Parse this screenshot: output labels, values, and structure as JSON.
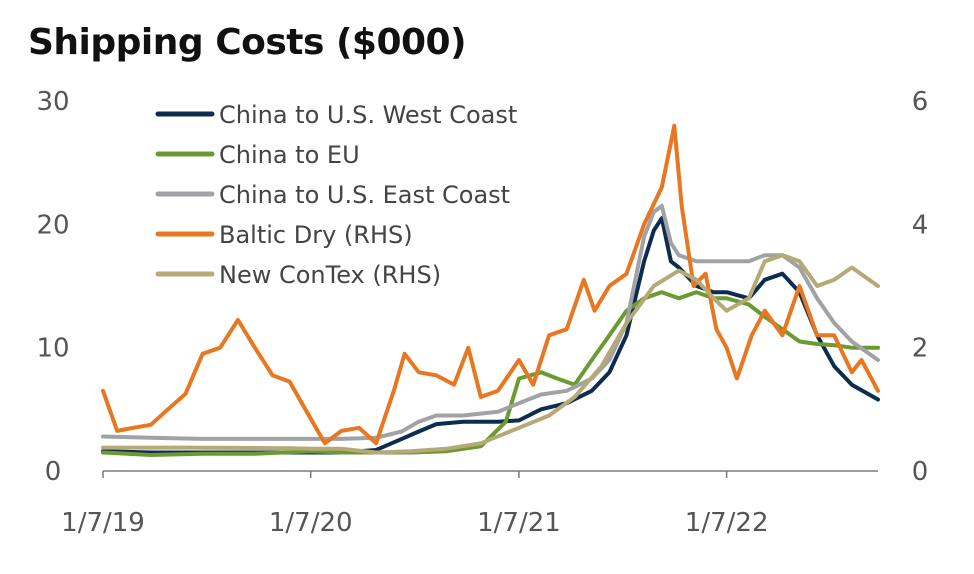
{
  "chart_data": {
    "type": "line",
    "title": "Shipping Costs ($000)",
    "xlabel": "",
    "ylabel": "",
    "x_ticks": [
      "1/7/19",
      "1/7/20",
      "1/7/21",
      "1/7/22"
    ],
    "x_range": [
      "2019-01-07",
      "2022-09-30"
    ],
    "ylim_left": [
      0,
      30
    ],
    "ylim_right": [
      0,
      6
    ],
    "y_ticks_left": [
      0,
      10,
      20,
      30
    ],
    "y_ticks_right": [
      0,
      2,
      4,
      6
    ],
    "grid": false,
    "legend_position": "top-left",
    "series": [
      {
        "name": "China to U.S. West Coast",
        "axis": "left",
        "color": "#0d2d4f",
        "points": [
          [
            "2019-01-07",
            1.6
          ],
          [
            "2019-04-01",
            1.5
          ],
          [
            "2019-07-01",
            1.5
          ],
          [
            "2019-10-01",
            1.5
          ],
          [
            "2020-01-07",
            1.5
          ],
          [
            "2020-03-01",
            1.5
          ],
          [
            "2020-05-01",
            1.7
          ],
          [
            "2020-06-15",
            2.6
          ],
          [
            "2020-07-15",
            3.2
          ],
          [
            "2020-08-15",
            3.8
          ],
          [
            "2020-10-01",
            4.0
          ],
          [
            "2020-12-01",
            4.0
          ],
          [
            "2021-01-07",
            4.1
          ],
          [
            "2021-02-15",
            5.0
          ],
          [
            "2021-04-01",
            5.5
          ],
          [
            "2021-05-15",
            6.5
          ],
          [
            "2021-06-15",
            8.0
          ],
          [
            "2021-07-15",
            11.0
          ],
          [
            "2021-08-15",
            17.0
          ],
          [
            "2021-09-01",
            19.5
          ],
          [
            "2021-09-15",
            20.5
          ],
          [
            "2021-10-01",
            17.0
          ],
          [
            "2021-10-15",
            16.5
          ],
          [
            "2021-11-15",
            15.0
          ],
          [
            "2021-12-15",
            14.5
          ],
          [
            "2022-01-07",
            14.5
          ],
          [
            "2022-02-15",
            14.0
          ],
          [
            "2022-03-15",
            15.5
          ],
          [
            "2022-04-15",
            16.0
          ],
          [
            "2022-05-15",
            14.5
          ],
          [
            "2022-06-15",
            11.0
          ],
          [
            "2022-07-15",
            8.5
          ],
          [
            "2022-08-15",
            7.0
          ],
          [
            "2022-09-30",
            5.8
          ]
        ]
      },
      {
        "name": "China to EU",
        "axis": "left",
        "color": "#6b9a33",
        "points": [
          [
            "2019-01-07",
            1.5
          ],
          [
            "2019-04-01",
            1.3
          ],
          [
            "2019-07-01",
            1.4
          ],
          [
            "2019-10-01",
            1.4
          ],
          [
            "2020-01-07",
            1.6
          ],
          [
            "2020-03-01",
            1.5
          ],
          [
            "2020-05-01",
            1.5
          ],
          [
            "2020-07-01",
            1.5
          ],
          [
            "2020-09-01",
            1.6
          ],
          [
            "2020-11-01",
            2.0
          ],
          [
            "2020-12-15",
            4.0
          ],
          [
            "2021-01-07",
            7.5
          ],
          [
            "2021-02-15",
            8.0
          ],
          [
            "2021-03-15",
            7.5
          ],
          [
            "2021-04-15",
            7.0
          ],
          [
            "2021-05-15",
            9.0
          ],
          [
            "2021-06-15",
            11.0
          ],
          [
            "2021-07-15",
            13.0
          ],
          [
            "2021-08-15",
            14.0
          ],
          [
            "2021-09-15",
            14.5
          ],
          [
            "2021-10-15",
            14.0
          ],
          [
            "2021-11-15",
            14.5
          ],
          [
            "2021-12-15",
            14.0
          ],
          [
            "2022-01-07",
            14.0
          ],
          [
            "2022-02-15",
            13.5
          ],
          [
            "2022-03-15",
            12.5
          ],
          [
            "2022-04-15",
            11.5
          ],
          [
            "2022-05-15",
            10.5
          ],
          [
            "2022-06-15",
            10.3
          ],
          [
            "2022-07-15",
            10.2
          ],
          [
            "2022-08-15",
            10.0
          ],
          [
            "2022-09-30",
            10.0
          ]
        ]
      },
      {
        "name": "China to U.S. East Coast",
        "axis": "left",
        "color": "#a0a2a6",
        "points": [
          [
            "2019-01-07",
            2.8
          ],
          [
            "2019-04-01",
            2.7
          ],
          [
            "2019-07-01",
            2.6
          ],
          [
            "2019-10-01",
            2.6
          ],
          [
            "2020-01-07",
            2.6
          ],
          [
            "2020-03-01",
            2.6
          ],
          [
            "2020-05-01",
            2.7
          ],
          [
            "2020-06-15",
            3.2
          ],
          [
            "2020-07-15",
            4.0
          ],
          [
            "2020-08-15",
            4.5
          ],
          [
            "2020-10-01",
            4.5
          ],
          [
            "2020-12-01",
            4.8
          ],
          [
            "2021-01-07",
            5.5
          ],
          [
            "2021-02-15",
            6.2
          ],
          [
            "2021-04-01",
            6.5
          ],
          [
            "2021-05-15",
            7.5
          ],
          [
            "2021-06-15",
            9.0
          ],
          [
            "2021-07-15",
            12.0
          ],
          [
            "2021-08-15",
            19.0
          ],
          [
            "2021-09-01",
            21.0
          ],
          [
            "2021-09-15",
            21.5
          ],
          [
            "2021-10-01",
            18.5
          ],
          [
            "2021-10-15",
            17.5
          ],
          [
            "2021-11-15",
            17.0
          ],
          [
            "2021-12-15",
            17.0
          ],
          [
            "2022-01-07",
            17.0
          ],
          [
            "2022-02-15",
            17.0
          ],
          [
            "2022-03-15",
            17.5
          ],
          [
            "2022-04-15",
            17.5
          ],
          [
            "2022-05-15",
            16.5
          ],
          [
            "2022-06-15",
            14.0
          ],
          [
            "2022-07-15",
            12.0
          ],
          [
            "2022-08-15",
            10.5
          ],
          [
            "2022-09-30",
            9.0
          ]
        ]
      },
      {
        "name": "Baltic Dry (RHS)",
        "axis": "right",
        "color": "#e87722",
        "points": [
          [
            "2019-01-07",
            1.3
          ],
          [
            "2019-02-01",
            0.65
          ],
          [
            "2019-03-01",
            0.7
          ],
          [
            "2019-04-01",
            0.75
          ],
          [
            "2019-05-01",
            1.0
          ],
          [
            "2019-06-01",
            1.25
          ],
          [
            "2019-07-01",
            1.9
          ],
          [
            "2019-08-01",
            2.0
          ],
          [
            "2019-09-01",
            2.45
          ],
          [
            "2019-10-01",
            2.0
          ],
          [
            "2019-11-01",
            1.55
          ],
          [
            "2019-12-01",
            1.45
          ],
          [
            "2020-01-07",
            0.85
          ],
          [
            "2020-02-01",
            0.45
          ],
          [
            "2020-03-01",
            0.65
          ],
          [
            "2020-04-01",
            0.7
          ],
          [
            "2020-05-01",
            0.45
          ],
          [
            "2020-06-01",
            1.3
          ],
          [
            "2020-06-20",
            1.9
          ],
          [
            "2020-07-15",
            1.6
          ],
          [
            "2020-08-15",
            1.55
          ],
          [
            "2020-09-15",
            1.4
          ],
          [
            "2020-10-10",
            2.0
          ],
          [
            "2020-11-01",
            1.2
          ],
          [
            "2020-12-01",
            1.3
          ],
          [
            "2021-01-07",
            1.8
          ],
          [
            "2021-02-01",
            1.4
          ],
          [
            "2021-03-01",
            2.2
          ],
          [
            "2021-04-01",
            2.3
          ],
          [
            "2021-05-01",
            3.1
          ],
          [
            "2021-05-20",
            2.6
          ],
          [
            "2021-06-15",
            3.0
          ],
          [
            "2021-07-15",
            3.2
          ],
          [
            "2021-08-15",
            4.0
          ],
          [
            "2021-09-15",
            4.6
          ],
          [
            "2021-10-07",
            5.6
          ],
          [
            "2021-10-20",
            4.3
          ],
          [
            "2021-11-10",
            3.0
          ],
          [
            "2021-12-01",
            3.2
          ],
          [
            "2021-12-20",
            2.3
          ],
          [
            "2022-01-07",
            2.0
          ],
          [
            "2022-01-25",
            1.5
          ],
          [
            "2022-02-20",
            2.2
          ],
          [
            "2022-03-15",
            2.6
          ],
          [
            "2022-04-15",
            2.2
          ],
          [
            "2022-05-15",
            3.0
          ],
          [
            "2022-06-15",
            2.2
          ],
          [
            "2022-07-15",
            2.2
          ],
          [
            "2022-08-15",
            1.6
          ],
          [
            "2022-09-01",
            1.8
          ],
          [
            "2022-09-30",
            1.3
          ]
        ]
      },
      {
        "name": "New ConTex (RHS)",
        "axis": "right",
        "color": "#b5a978",
        "points": [
          [
            "2019-01-07",
            0.38
          ],
          [
            "2019-06-01",
            0.38
          ],
          [
            "2019-12-01",
            0.37
          ],
          [
            "2020-01-07",
            0.36
          ],
          [
            "2020-03-01",
            0.36
          ],
          [
            "2020-05-01",
            0.3
          ],
          [
            "2020-07-01",
            0.32
          ],
          [
            "2020-09-01",
            0.36
          ],
          [
            "2020-11-01",
            0.45
          ],
          [
            "2021-01-07",
            0.7
          ],
          [
            "2021-03-01",
            0.9
          ],
          [
            "2021-04-15",
            1.2
          ],
          [
            "2021-06-01",
            1.7
          ],
          [
            "2021-07-15",
            2.4
          ],
          [
            "2021-09-01",
            3.0
          ],
          [
            "2021-10-15",
            3.25
          ],
          [
            "2021-11-15",
            3.1
          ],
          [
            "2021-12-15",
            2.8
          ],
          [
            "2022-01-07",
            2.6
          ],
          [
            "2022-02-15",
            2.8
          ],
          [
            "2022-03-15",
            3.4
          ],
          [
            "2022-04-15",
            3.5
          ],
          [
            "2022-05-15",
            3.4
          ],
          [
            "2022-06-15",
            3.0
          ],
          [
            "2022-07-15",
            3.1
          ],
          [
            "2022-08-15",
            3.3
          ],
          [
            "2022-09-30",
            3.0
          ]
        ]
      }
    ]
  }
}
